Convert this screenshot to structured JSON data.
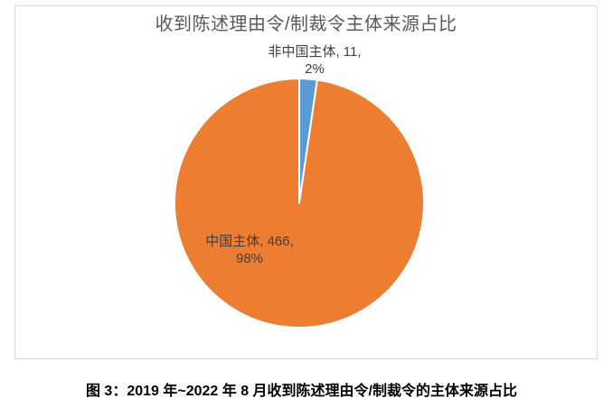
{
  "chart": {
    "title": "收到陈述理由令/制裁令主体来源占比",
    "colors": {
      "title_text": "#595959",
      "label_text": "#404040",
      "frame_border": "#D9D9D9",
      "background": "#FFFFFF",
      "slice_separator": "#FFFFFF"
    }
  },
  "chart_data": {
    "type": "pie",
    "title": "收到陈述理由令/制裁令主体来源占比",
    "categories": [
      "非中国主体",
      "中国主体"
    ],
    "values": [
      11,
      466
    ],
    "percents": [
      "2%",
      "98%"
    ],
    "slice_colors": [
      "#5B9BD5",
      "#ED7D31"
    ],
    "start_angle": "top",
    "direction": "clockwise",
    "legend": "none",
    "data_labels": [
      {
        "lines": [
          "非中国主体, 11,",
          "2%"
        ],
        "placement": "outside-top"
      },
      {
        "lines": [
          "中国主体, 466,",
          "98%"
        ],
        "placement": "inside-left"
      }
    ]
  },
  "caption": "图 3：2019 年~2022 年 8 月收到陈述理由令/制裁令的主体来源占比"
}
